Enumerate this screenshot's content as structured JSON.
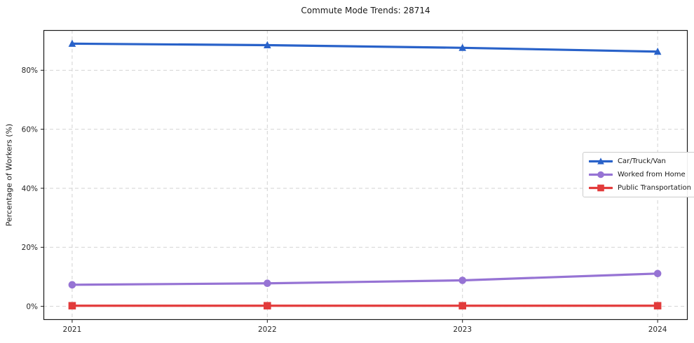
{
  "chart_data": {
    "type": "line",
    "title": "Commute Mode Trends: 28714",
    "xlabel": "",
    "ylabel": "Percentage of Workers (%)",
    "x": [
      2021,
      2022,
      2023,
      2024
    ],
    "x_tick_labels": [
      "2021",
      "2022",
      "2023",
      "2024"
    ],
    "y_ticks": [
      0,
      20,
      40,
      60,
      80
    ],
    "y_tick_labels": [
      "0%",
      "20%",
      "40%",
      "60%",
      "80%"
    ],
    "xlim": [
      2020.853,
      2024.154
    ],
    "ylim": [
      -4.6,
      93.6
    ],
    "grid": true,
    "grid_style": "dashed",
    "legend_position": "center right",
    "series": [
      {
        "name": "Car/Truck/Van",
        "color": "#2962c9",
        "marker": "triangle",
        "values": [
          89.0,
          88.5,
          87.6,
          86.3
        ]
      },
      {
        "name": "Worked from Home",
        "color": "#9673d4",
        "marker": "circle",
        "values": [
          7.3,
          7.8,
          8.8,
          11.1
        ]
      },
      {
        "name": "Public Transportation",
        "color": "#e23b3b",
        "marker": "square",
        "values": [
          0.2,
          0.2,
          0.2,
          0.2
        ]
      }
    ],
    "colors": {
      "grid": "#d2d2d2",
      "spine": "#1a1a1a",
      "tick_label": "#262626",
      "background": "#ffffff"
    }
  }
}
